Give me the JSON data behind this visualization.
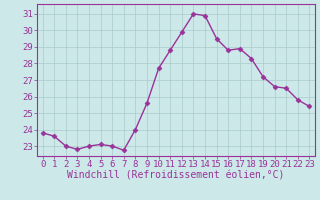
{
  "x": [
    0,
    1,
    2,
    3,
    4,
    5,
    6,
    7,
    8,
    9,
    10,
    11,
    12,
    13,
    14,
    15,
    16,
    17,
    18,
    19,
    20,
    21,
    22,
    23
  ],
  "y": [
    23.8,
    23.6,
    23.0,
    22.8,
    23.0,
    23.1,
    23.0,
    22.75,
    24.0,
    25.6,
    27.7,
    28.8,
    29.9,
    31.0,
    30.9,
    29.5,
    28.8,
    28.9,
    28.3,
    27.2,
    26.6,
    26.5,
    25.8,
    25.4
  ],
  "line_color": "#993399",
  "marker": "D",
  "markersize": 2.5,
  "linewidth": 1.0,
  "bg_color": "#cce8e8",
  "grid_color": "#aacccc",
  "xlabel": "Windchill (Refroidissement éolien,°C)",
  "xlabel_fontsize": 7,
  "ytick_labels": [
    23,
    24,
    25,
    26,
    27,
    28,
    29,
    30,
    31
  ],
  "ylim": [
    22.4,
    31.6
  ],
  "xtick_labels": [
    0,
    1,
    2,
    3,
    4,
    5,
    6,
    7,
    8,
    9,
    10,
    11,
    12,
    13,
    14,
    15,
    16,
    17,
    18,
    19,
    20,
    21,
    22,
    23
  ],
  "xlim": [
    -0.5,
    23.5
  ],
  "tick_color": "#993399",
  "tick_fontsize": 6.5,
  "spine_color": "#993399"
}
